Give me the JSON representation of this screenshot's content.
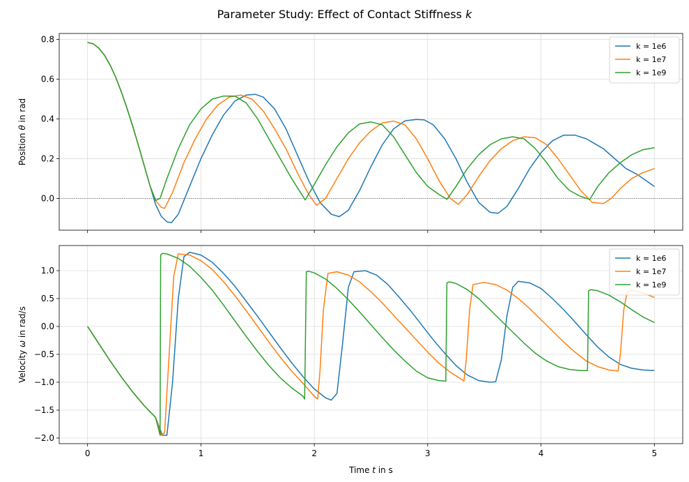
{
  "figure": {
    "title": "Parameter Study: Effect of Contact Stiffness ",
    "title_symbol": "k"
  },
  "colors": {
    "blue": "#1f77b4",
    "orange": "#ff7f0e",
    "green": "#2ca02c",
    "grid": "#dcdcdc",
    "zero_line": "#808080"
  },
  "chart_data": [
    {
      "type": "line",
      "id": "position",
      "ylabel": "Position θ in rad",
      "ylabel_prefix": "Position ",
      "ylabel_symbol": "θ",
      "ylabel_suffix": " in rad",
      "xlim": [
        -0.25,
        5.25
      ],
      "ylim": [
        -0.16,
        0.83
      ],
      "xticks": [
        0,
        1,
        2,
        3,
        4,
        5
      ],
      "xtick_labels_visible": false,
      "yticks": [
        0.0,
        0.2,
        0.4,
        0.6,
        0.8
      ],
      "ytick_labels": [
        "0.0",
        "0.2",
        "0.4",
        "0.6",
        "0.8"
      ],
      "grid": true,
      "reference_line": {
        "y": 0.0,
        "style": "dotted"
      },
      "legend_position": "top-right",
      "series": [
        {
          "name": "k = 1e6",
          "color": "#1f77b4",
          "x": [
            0,
            0.05,
            0.1,
            0.15,
            0.2,
            0.25,
            0.3,
            0.35,
            0.4,
            0.45,
            0.5,
            0.55,
            0.6,
            0.65,
            0.7,
            0.74,
            0.8,
            0.9,
            1.0,
            1.1,
            1.2,
            1.3,
            1.4,
            1.48,
            1.55,
            1.65,
            1.75,
            1.85,
            1.95,
            2.05,
            2.15,
            2.22,
            2.3,
            2.4,
            2.5,
            2.6,
            2.7,
            2.8,
            2.9,
            2.97,
            3.05,
            3.15,
            3.25,
            3.35,
            3.45,
            3.55,
            3.62,
            3.7,
            3.8,
            3.9,
            4.0,
            4.1,
            4.2,
            4.3,
            4.4,
            4.46,
            4.55,
            4.65,
            4.75,
            4.85,
            4.95,
            5.0
          ],
          "y": [
            0.785,
            0.778,
            0.756,
            0.72,
            0.67,
            0.607,
            0.533,
            0.45,
            0.36,
            0.264,
            0.165,
            0.065,
            -0.03,
            -0.09,
            -0.118,
            -0.122,
            -0.08,
            0.06,
            0.2,
            0.32,
            0.42,
            0.49,
            0.52,
            0.524,
            0.51,
            0.45,
            0.35,
            0.22,
            0.09,
            -0.02,
            -0.08,
            -0.092,
            -0.06,
            0.04,
            0.16,
            0.27,
            0.35,
            0.39,
            0.397,
            0.395,
            0.37,
            0.3,
            0.2,
            0.08,
            -0.02,
            -0.07,
            -0.075,
            -0.04,
            0.05,
            0.15,
            0.23,
            0.29,
            0.318,
            0.318,
            0.3,
            0.28,
            0.25,
            0.2,
            0.15,
            0.12,
            0.08,
            0.06
          ]
        },
        {
          "name": "k = 1e7",
          "color": "#ff7f0e",
          "x": [
            0,
            0.05,
            0.1,
            0.15,
            0.2,
            0.25,
            0.3,
            0.35,
            0.4,
            0.45,
            0.5,
            0.55,
            0.6,
            0.65,
            0.68,
            0.75,
            0.85,
            0.95,
            1.05,
            1.15,
            1.25,
            1.35,
            1.45,
            1.55,
            1.65,
            1.75,
            1.85,
            1.95,
            2.02,
            2.1,
            2.2,
            2.3,
            2.4,
            2.5,
            2.6,
            2.7,
            2.8,
            2.9,
            3.0,
            3.1,
            3.2,
            3.27,
            3.35,
            3.45,
            3.55,
            3.65,
            3.75,
            3.85,
            3.95,
            4.05,
            4.15,
            4.25,
            4.35,
            4.45,
            4.55,
            4.62,
            4.7,
            4.8,
            4.9,
            5.0
          ],
          "y": [
            0.785,
            0.778,
            0.756,
            0.72,
            0.67,
            0.607,
            0.533,
            0.45,
            0.36,
            0.264,
            0.165,
            0.065,
            -0.01,
            -0.045,
            -0.05,
            0.03,
            0.18,
            0.3,
            0.4,
            0.47,
            0.51,
            0.52,
            0.5,
            0.44,
            0.35,
            0.25,
            0.13,
            0.02,
            -0.035,
            0.0,
            0.1,
            0.2,
            0.28,
            0.34,
            0.38,
            0.389,
            0.37,
            0.3,
            0.2,
            0.09,
            0.0,
            -0.03,
            0.02,
            0.11,
            0.19,
            0.25,
            0.29,
            0.31,
            0.305,
            0.27,
            0.2,
            0.12,
            0.04,
            -0.02,
            -0.026,
            0.0,
            0.05,
            0.1,
            0.13,
            0.15
          ]
        },
        {
          "name": "k = 1e9",
          "color": "#2ca02c",
          "x": [
            0,
            0.05,
            0.1,
            0.15,
            0.2,
            0.25,
            0.3,
            0.35,
            0.4,
            0.45,
            0.5,
            0.55,
            0.6,
            0.64,
            0.7,
            0.8,
            0.9,
            1.0,
            1.1,
            1.2,
            1.3,
            1.4,
            1.5,
            1.6,
            1.7,
            1.8,
            1.92,
            2.0,
            2.1,
            2.2,
            2.3,
            2.4,
            2.5,
            2.6,
            2.7,
            2.8,
            2.9,
            3.0,
            3.1,
            3.17,
            3.25,
            3.35,
            3.45,
            3.55,
            3.65,
            3.75,
            3.85,
            3.95,
            4.05,
            4.15,
            4.25,
            4.35,
            4.43,
            4.5,
            4.6,
            4.7,
            4.8,
            4.9,
            5.0
          ],
          "y": [
            0.785,
            0.778,
            0.756,
            0.72,
            0.67,
            0.607,
            0.533,
            0.45,
            0.36,
            0.264,
            0.165,
            0.065,
            -0.01,
            0.0,
            0.1,
            0.25,
            0.37,
            0.45,
            0.5,
            0.515,
            0.515,
            0.48,
            0.4,
            0.3,
            0.2,
            0.1,
            -0.008,
            0.07,
            0.17,
            0.26,
            0.33,
            0.375,
            0.385,
            0.37,
            0.31,
            0.22,
            0.13,
            0.06,
            0.02,
            -0.005,
            0.06,
            0.15,
            0.22,
            0.27,
            0.3,
            0.31,
            0.3,
            0.25,
            0.18,
            0.1,
            0.04,
            0.01,
            -0.005,
            0.06,
            0.13,
            0.18,
            0.22,
            0.245,
            0.255
          ]
        }
      ]
    },
    {
      "type": "line",
      "id": "velocity",
      "ylabel": "Velocity ω in rad/s",
      "ylabel_prefix": "Velocity ",
      "ylabel_symbol": "ω",
      "ylabel_suffix": " in rad/s",
      "xlabel": "Time t in s",
      "xlabel_prefix": "Time ",
      "xlabel_symbol": "t",
      "xlabel_suffix": " in s",
      "xlim": [
        -0.25,
        5.25
      ],
      "ylim": [
        -2.1,
        1.45
      ],
      "xticks": [
        0,
        1,
        2,
        3,
        4,
        5
      ],
      "xtick_labels": [
        "0",
        "1",
        "2",
        "3",
        "4",
        "5"
      ],
      "yticks": [
        -2.0,
        -1.5,
        -1.0,
        -0.5,
        0.0,
        0.5,
        1.0
      ],
      "ytick_labels": [
        "−2.0",
        "−1.5",
        "−1.0",
        "−0.5",
        "0.0",
        "0.5",
        "1.0"
      ],
      "grid": true,
      "legend_position": "top-right",
      "series": [
        {
          "name": "k = 1e6",
          "color": "#1f77b4",
          "x": [
            0,
            0.1,
            0.2,
            0.3,
            0.4,
            0.5,
            0.6,
            0.66,
            0.7,
            0.75,
            0.8,
            0.85,
            0.9,
            1.0,
            1.1,
            1.2,
            1.3,
            1.4,
            1.5,
            1.6,
            1.7,
            1.8,
            1.9,
            2.0,
            2.1,
            2.15,
            2.2,
            2.25,
            2.3,
            2.35,
            2.45,
            2.55,
            2.65,
            2.75,
            2.85,
            2.95,
            3.05,
            3.15,
            3.25,
            3.35,
            3.45,
            3.55,
            3.6,
            3.65,
            3.7,
            3.75,
            3.8,
            3.9,
            4.0,
            4.1,
            4.2,
            4.3,
            4.4,
            4.5,
            4.6,
            4.7,
            4.8,
            4.9,
            5.0
          ],
          "y": [
            0.0,
            -0.31,
            -0.62,
            -0.91,
            -1.18,
            -1.42,
            -1.63,
            -1.95,
            -1.95,
            -1.0,
            0.5,
            1.25,
            1.33,
            1.28,
            1.15,
            0.95,
            0.72,
            0.45,
            0.18,
            -0.1,
            -0.38,
            -0.65,
            -0.9,
            -1.12,
            -1.28,
            -1.32,
            -1.2,
            -0.3,
            0.7,
            0.98,
            1.0,
            0.92,
            0.75,
            0.52,
            0.28,
            0.02,
            -0.24,
            -0.48,
            -0.7,
            -0.87,
            -0.97,
            -1.0,
            -0.99,
            -0.6,
            0.2,
            0.7,
            0.81,
            0.78,
            0.68,
            0.5,
            0.3,
            0.08,
            -0.15,
            -0.37,
            -0.55,
            -0.68,
            -0.75,
            -0.78,
            -0.79
          ]
        },
        {
          "name": "k = 1e7",
          "color": "#ff7f0e",
          "x": [
            0,
            0.1,
            0.2,
            0.3,
            0.4,
            0.5,
            0.6,
            0.65,
            0.68,
            0.72,
            0.76,
            0.8,
            0.9,
            1.0,
            1.1,
            1.2,
            1.3,
            1.4,
            1.5,
            1.6,
            1.7,
            1.8,
            1.9,
            2.0,
            2.03,
            2.05,
            2.08,
            2.12,
            2.2,
            2.3,
            2.4,
            2.5,
            2.6,
            2.7,
            2.8,
            2.9,
            3.0,
            3.1,
            3.2,
            3.3,
            3.32,
            3.34,
            3.37,
            3.4,
            3.5,
            3.6,
            3.7,
            3.8,
            3.9,
            4.0,
            4.1,
            4.2,
            4.3,
            4.4,
            4.5,
            4.6,
            4.68,
            4.7,
            4.73,
            4.76,
            4.8,
            4.9,
            5.0
          ],
          "y": [
            0.0,
            -0.31,
            -0.62,
            -0.91,
            -1.18,
            -1.42,
            -1.63,
            -1.95,
            -1.9,
            -0.5,
            0.9,
            1.3,
            1.28,
            1.18,
            1.02,
            0.8,
            0.55,
            0.28,
            0.0,
            -0.28,
            -0.55,
            -0.8,
            -1.02,
            -1.25,
            -1.3,
            -0.8,
            0.3,
            0.95,
            0.98,
            0.92,
            0.8,
            0.62,
            0.42,
            0.2,
            -0.02,
            -0.24,
            -0.46,
            -0.66,
            -0.82,
            -0.95,
            -0.98,
            -0.6,
            0.3,
            0.75,
            0.79,
            0.75,
            0.65,
            0.5,
            0.32,
            0.12,
            -0.08,
            -0.28,
            -0.46,
            -0.62,
            -0.72,
            -0.78,
            -0.8,
            -0.5,
            0.3,
            0.62,
            0.65,
            0.6,
            0.52
          ]
        },
        {
          "name": "k = 1e9",
          "color": "#2ca02c",
          "x": [
            0,
            0.1,
            0.2,
            0.3,
            0.4,
            0.5,
            0.6,
            0.64,
            0.645,
            0.66,
            0.7,
            0.8,
            0.9,
            1.0,
            1.1,
            1.2,
            1.3,
            1.4,
            1.5,
            1.6,
            1.7,
            1.8,
            1.9,
            1.915,
            1.93,
            1.95,
            2.0,
            2.1,
            2.2,
            2.3,
            2.4,
            2.5,
            2.6,
            2.7,
            2.8,
            2.9,
            3.0,
            3.1,
            3.16,
            3.17,
            3.19,
            3.25,
            3.35,
            3.45,
            3.55,
            3.65,
            3.75,
            3.85,
            3.95,
            4.05,
            4.15,
            4.25,
            4.35,
            4.41,
            4.42,
            4.44,
            4.5,
            4.6,
            4.7,
            4.8,
            4.9,
            5.0
          ],
          "y": [
            0.0,
            -0.31,
            -0.62,
            -0.91,
            -1.18,
            -1.42,
            -1.63,
            -1.95,
            1.28,
            1.31,
            1.3,
            1.22,
            1.08,
            0.88,
            0.65,
            0.38,
            0.1,
            -0.18,
            -0.45,
            -0.7,
            -0.92,
            -1.1,
            -1.25,
            -1.3,
            0.98,
            0.99,
            0.96,
            0.85,
            0.68,
            0.48,
            0.26,
            0.03,
            -0.2,
            -0.42,
            -0.62,
            -0.8,
            -0.92,
            -0.97,
            -0.98,
            0.78,
            0.8,
            0.77,
            0.66,
            0.5,
            0.3,
            0.1,
            -0.1,
            -0.3,
            -0.48,
            -0.62,
            -0.72,
            -0.77,
            -0.79,
            -0.79,
            0.64,
            0.66,
            0.64,
            0.56,
            0.44,
            0.3,
            0.17,
            0.07
          ]
        }
      ]
    }
  ]
}
